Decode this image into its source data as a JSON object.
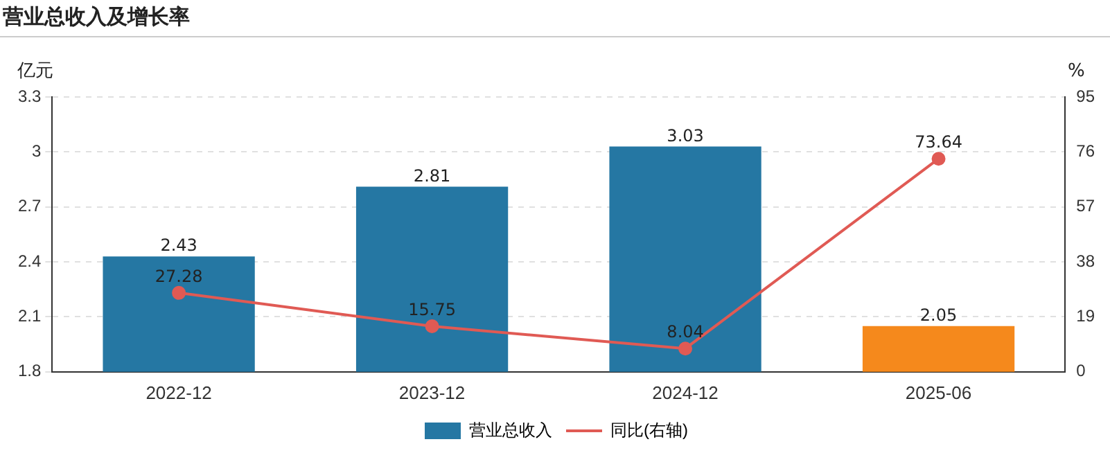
{
  "chart_data": {
    "type": "bar",
    "title": "营业总收入及增长率",
    "ylabel": "亿元",
    "y2label": "%",
    "categories": [
      "2022-12",
      "2023-12",
      "2024-12",
      "2025-06"
    ],
    "series": [
      {
        "name": "营业总收入",
        "color": "#2577a3",
        "colors": [
          "#2577a3",
          "#2577a3",
          "#2577a3",
          "#f5891c"
        ],
        "values": [
          2.43,
          2.81,
          3.03,
          2.05
        ]
      },
      {
        "name": "同比(右轴)",
        "type": "line",
        "axis": "y2",
        "color": "#e05a54",
        "values": [
          27.28,
          15.75,
          8.04,
          73.64
        ]
      }
    ],
    "ylim": [
      1.8,
      3.3
    ],
    "yticks": [
      1.8,
      2.1,
      2.4,
      2.7,
      3,
      3.3
    ],
    "y2lim": [
      0,
      95
    ],
    "y2ticks": [
      0,
      19,
      38,
      57,
      76,
      95
    ],
    "grid": "y",
    "legend": "bottom",
    "marker": "circle",
    "line_style": "solid",
    "data_labels": true
  }
}
